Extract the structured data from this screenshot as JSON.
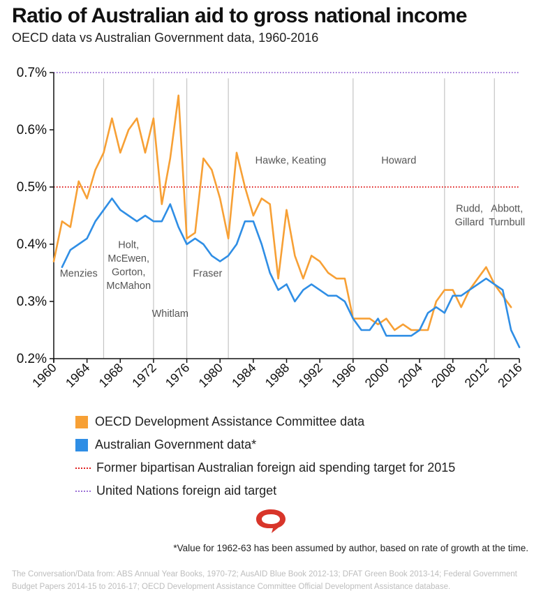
{
  "header": {
    "title": "Ratio of Australian aid to gross national income",
    "subtitle": "OECD data vs Australian Government data, 1960-2016"
  },
  "chart_data": {
    "type": "line",
    "title": "Ratio of Australian aid to gross national income",
    "subtitle": "OECD data vs Australian Government data, 1960-2016",
    "xlabel": "",
    "ylabel": "",
    "xlim": [
      1960,
      2016
    ],
    "ylim": [
      0.2,
      0.7
    ],
    "x_ticks": [
      1960,
      1964,
      1968,
      1972,
      1976,
      1980,
      1984,
      1988,
      1992,
      1996,
      2000,
      2004,
      2008,
      2012,
      2016
    ],
    "y_ticks": [
      {
        "value": 0.2,
        "label": "0.2%"
      },
      {
        "value": 0.3,
        "label": "0.3%"
      },
      {
        "value": 0.4,
        "label": "0.4%"
      },
      {
        "value": 0.5,
        "label": "0.5%"
      },
      {
        "value": 0.6,
        "label": "0.6%"
      },
      {
        "value": 0.7,
        "label": "0.7%"
      }
    ],
    "series": [
      {
        "name": "OECD Development Assistance Committee data",
        "color": "#f7a035",
        "x": [
          1960,
          1961,
          1962,
          1963,
          1964,
          1965,
          1966,
          1967,
          1968,
          1969,
          1970,
          1971,
          1972,
          1973,
          1974,
          1975,
          1976,
          1977,
          1978,
          1979,
          1980,
          1981,
          1982,
          1983,
          1984,
          1985,
          1986,
          1987,
          1988,
          1989,
          1990,
          1991,
          1992,
          1993,
          1994,
          1995,
          1996,
          1997,
          1998,
          1999,
          2000,
          2001,
          2002,
          2003,
          2004,
          2005,
          2006,
          2007,
          2008,
          2009,
          2010,
          2011,
          2012,
          2013,
          2014,
          2015
        ],
        "values": [
          0.37,
          0.44,
          0.43,
          0.51,
          0.48,
          0.53,
          0.56,
          0.62,
          0.56,
          0.6,
          0.62,
          0.56,
          0.62,
          0.47,
          0.55,
          0.66,
          0.41,
          0.42,
          0.55,
          0.53,
          0.48,
          0.41,
          0.56,
          0.5,
          0.45,
          0.48,
          0.47,
          0.34,
          0.46,
          0.38,
          0.34,
          0.38,
          0.37,
          0.35,
          0.34,
          0.34,
          0.27,
          0.27,
          0.27,
          0.26,
          0.27,
          0.25,
          0.26,
          0.25,
          0.25,
          0.25,
          0.3,
          0.32,
          0.32,
          0.29,
          0.32,
          0.34,
          0.36,
          0.33,
          0.31,
          0.29
        ]
      },
      {
        "name": "Australian Government data*",
        "color": "#2f8ee5",
        "x": [
          1961,
          1962,
          1963,
          1964,
          1965,
          1966,
          1967,
          1968,
          1969,
          1970,
          1971,
          1972,
          1973,
          1974,
          1975,
          1976,
          1977,
          1978,
          1979,
          1980,
          1981,
          1982,
          1983,
          1984,
          1985,
          1986,
          1987,
          1988,
          1989,
          1990,
          1991,
          1992,
          1993,
          1994,
          1995,
          1996,
          1997,
          1998,
          1999,
          2000,
          2001,
          2002,
          2003,
          2004,
          2005,
          2006,
          2007,
          2008,
          2009,
          2010,
          2011,
          2012,
          2013,
          2014,
          2015,
          2016
        ],
        "values": [
          0.36,
          0.39,
          0.4,
          0.41,
          0.44,
          0.46,
          0.48,
          0.46,
          0.45,
          0.44,
          0.45,
          0.44,
          0.44,
          0.47,
          0.43,
          0.4,
          0.41,
          0.4,
          0.38,
          0.37,
          0.38,
          0.4,
          0.44,
          0.44,
          0.4,
          0.35,
          0.32,
          0.33,
          0.3,
          0.32,
          0.33,
          0.32,
          0.31,
          0.31,
          0.3,
          0.27,
          0.25,
          0.25,
          0.27,
          0.24,
          0.24,
          0.24,
          0.24,
          0.25,
          0.28,
          0.29,
          0.28,
          0.31,
          0.31,
          0.32,
          0.33,
          0.34,
          0.33,
          0.32,
          0.25,
          0.22
        ]
      }
    ],
    "reference_lines": [
      {
        "name": "Former bipartisan Australian foreign aid spending target for 2015",
        "value": 0.5,
        "color": "#e02020",
        "style": "dotted"
      },
      {
        "name": "United Nations foreign aid target",
        "value": 0.7,
        "color": "#9b6fd6",
        "style": "dotted"
      }
    ],
    "governments": [
      {
        "label": "Menzies",
        "start": 1960,
        "end": 1966,
        "label_lines": [
          "Menzies"
        ],
        "label_y": 0.343
      },
      {
        "label": "Holt, McEwen, Gorton, McMahon",
        "start": 1966,
        "end": 1972,
        "label_lines": [
          "Holt,",
          "McEwen,",
          "Gorton,",
          "McMahon"
        ],
        "label_y": 0.393
      },
      {
        "label": "Whitlam",
        "start": 1972,
        "end": 1976,
        "label_lines": [
          "Whitlam"
        ],
        "label_y": 0.273
      },
      {
        "label": "Fraser",
        "start": 1976,
        "end": 1981,
        "label_lines": [
          "Fraser"
        ],
        "label_y": 0.343
      },
      {
        "label": "Hawke, Keating",
        "start": 1981,
        "end": 1996,
        "label_lines": [
          "Hawke, Keating"
        ],
        "label_y": 0.541
      },
      {
        "label": "Howard",
        "start": 1996,
        "end": 2007,
        "label_lines": [
          "Howard"
        ],
        "label_y": 0.541
      },
      {
        "label": "Rudd, Gillard",
        "start": 2007,
        "end": 2013,
        "label_lines": [
          "Rudd,",
          "Gillard"
        ],
        "label_y": 0.457
      },
      {
        "label": "Abbott, Turnbull",
        "start": 2013,
        "end": 2016,
        "label_lines": [
          "Abbott,",
          "Turnbull"
        ],
        "label_y": 0.457
      }
    ],
    "era_dividers": [
      1966,
      1972,
      1976,
      1981,
      1996,
      2007,
      2013
    ]
  },
  "legend": {
    "items": [
      {
        "label": "OECD Development Assistance Committee data",
        "color": "#f7a035",
        "kind": "swatch"
      },
      {
        "label": "Australian Government data*",
        "color": "#2f8ee5",
        "kind": "swatch"
      },
      {
        "label": "Former bipartisan Australian foreign aid spending target for 2015",
        "color": "#e02020",
        "kind": "dotted"
      },
      {
        "label": "United Nations foreign aid target",
        "color": "#9b6fd6",
        "kind": "dotted"
      }
    ]
  },
  "logo": {
    "icon": "the-conversation-logo-icon",
    "color": "#d8352a"
  },
  "footnote": "*Value for 1962-63 has been assumed by author, based on rate of growth at the time.",
  "source": "The Conversation/Data from: ABS Annual Year Books, 1970-72; AusAID Blue Book 2012-13; DFAT Green Book 2013-14; Federal Government Budget Papers 2014-15 to 2016-17; OECD Development Assistance Committee Official Development Assistance database."
}
